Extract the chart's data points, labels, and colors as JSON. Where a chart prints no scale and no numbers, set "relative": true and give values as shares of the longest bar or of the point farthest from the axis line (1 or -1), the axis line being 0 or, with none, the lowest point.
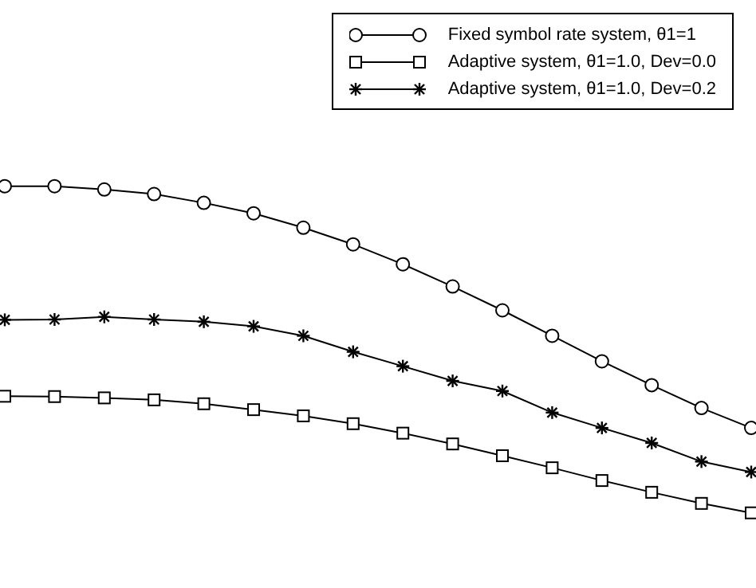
{
  "chart_data": {
    "type": "line",
    "relative": true,
    "categories": [
      null,
      null,
      null,
      null,
      null,
      null,
      null,
      null,
      null,
      null,
      null,
      null,
      null,
      null,
      null,
      null
    ],
    "legend": "top right",
    "line_style": "solid",
    "series": [
      {
        "name": "Fixed symbol rate system, θ1=1",
        "color": "#000000",
        "marker": "circle",
        "values": [
          1.0,
          1.0,
          0.99,
          0.976,
          0.949,
          0.917,
          0.873,
          0.822,
          0.761,
          0.693,
          0.62,
          0.542,
          0.464,
          0.391,
          0.321,
          0.26
        ]
      },
      {
        "name": "Adaptive system, θ1=1.0, Dev=0.0",
        "color": "#000000",
        "marker": "square",
        "values": [
          0.357,
          0.356,
          0.352,
          0.346,
          0.334,
          0.316,
          0.297,
          0.273,
          0.244,
          0.211,
          0.175,
          0.138,
          0.099,
          0.063,
          0.029,
          0.0
        ]
      },
      {
        "name": "Adaptive system, θ1=1.0, Dev=0.2",
        "color": "#000000",
        "marker": "cross",
        "values": [
          0.591,
          0.592,
          0.6,
          0.592,
          0.585,
          0.571,
          0.542,
          0.493,
          0.449,
          0.404,
          0.373,
          0.307,
          0.26,
          0.214,
          0.157,
          0.125
        ]
      }
    ]
  }
}
